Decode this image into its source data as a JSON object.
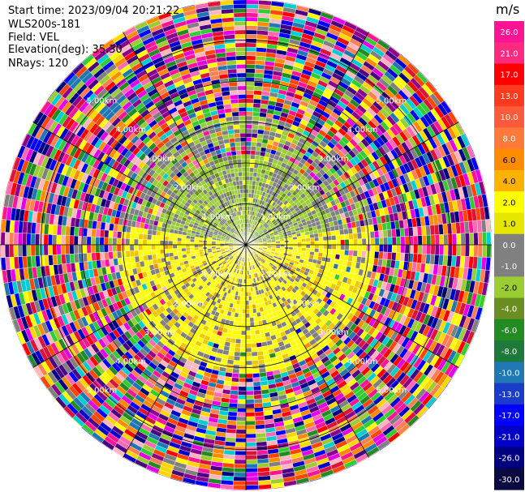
{
  "info": {
    "start_time": "Start time: 2023/09/04 20:21:22",
    "instrument": "WLS200s-181",
    "field": "Field: VEL",
    "elevation": "Elevation(deg): 35.30",
    "nrays": "NRays: 120"
  },
  "colorbar": {
    "unit": "m/s",
    "ticks": [
      "26.0",
      "21.0",
      "17.0",
      "13.0",
      "10.0",
      "8.0",
      "6.0",
      "4.0",
      "2.0",
      "1.0",
      "0.0",
      "-1.0",
      "-2.0",
      "-4.0",
      "-6.0",
      "-8.0",
      "-10.0",
      "-13.0",
      "-17.0",
      "-21.0",
      "-26.0",
      "-30.0"
    ],
    "colors": [
      "#ff1493",
      "#ff2a80",
      "#ff0000",
      "#ff3a1e",
      "#ff5a3c",
      "#ff7a3a",
      "#ff8c00",
      "#ffb300",
      "#ffff00",
      "#e6e600",
      "#808080",
      "#808080",
      "#9acd32",
      "#6b8e23",
      "#228b22",
      "#1e7a3a",
      "#1f77b4",
      "#1a3cc8",
      "#0000ff",
      "#0000c8",
      "#000080",
      "#0a0a40"
    ]
  },
  "chart_data": {
    "type": "heatmap",
    "projection": "polar PPI",
    "field": "VEL",
    "units": "m/s",
    "elevation_deg": 35.3,
    "nrays": 120,
    "range_rings_km": [
      1.0,
      2.0,
      3.0,
      4.0,
      5.0
    ],
    "ring_labels": [
      "1.00km",
      "2.00km",
      "3.00km",
      "4.00km",
      "5.00km"
    ],
    "max_range_km": 6.0,
    "color_levels": [
      -30.0,
      -26.0,
      -21.0,
      -17.0,
      -13.0,
      -10.0,
      -8.0,
      -6.0,
      -4.0,
      -2.0,
      -1.0,
      0.0,
      1.0,
      2.0,
      4.0,
      6.0,
      8.0,
      10.0,
      13.0,
      17.0,
      21.0,
      26.0
    ],
    "pattern": {
      "inner_km": [
        0.0,
        2.0
      ],
      "inner_north_half": "negative (-1 to -4 m/s, green)",
      "inner_south_half": "positive (1 to 4 m/s, yellow)",
      "near_zero_fill": "0.0 (gray)",
      "outer_km": [
        3.2,
        6.0
      ],
      "outer": "noise, random colors across full scale"
    }
  }
}
